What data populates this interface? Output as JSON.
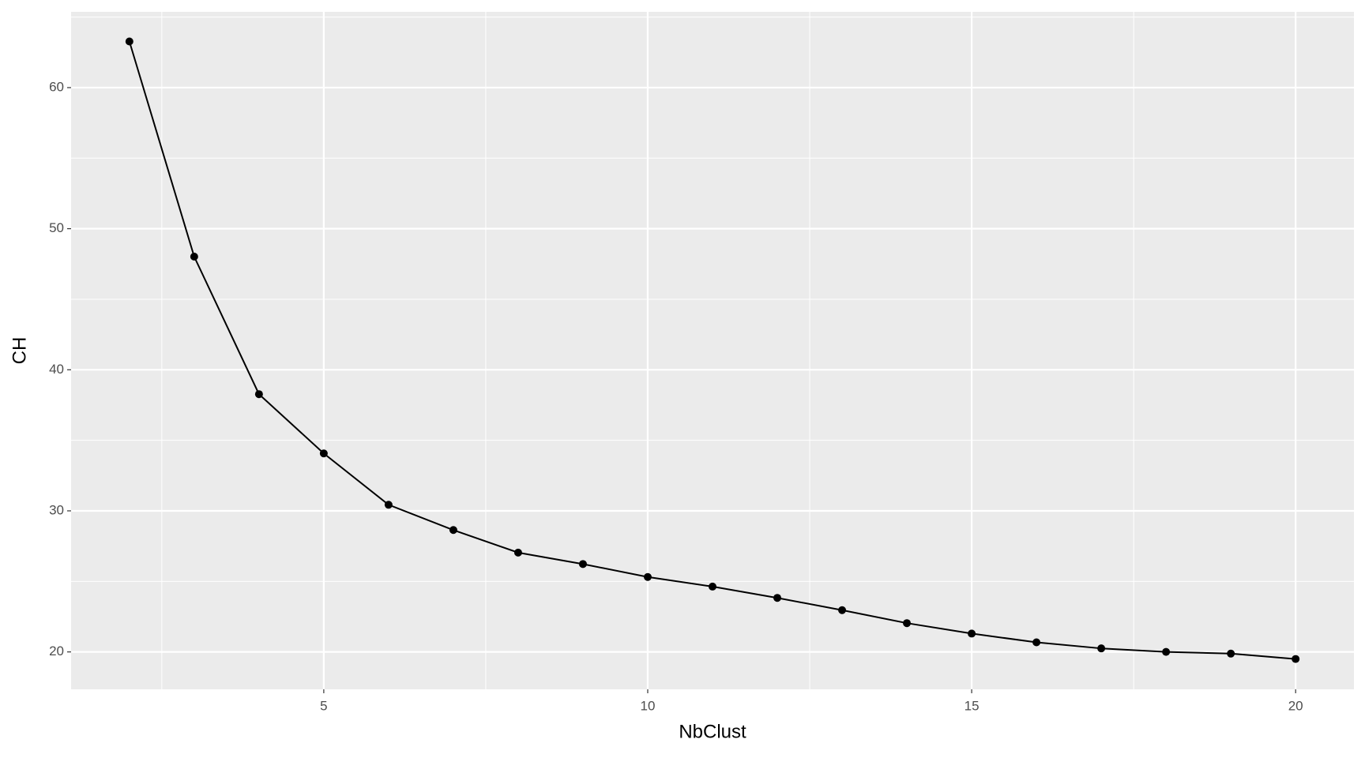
{
  "chart_data": {
    "type": "line",
    "x_label": "NbClust",
    "y_label": "CH",
    "x": [
      2,
      3,
      4,
      5,
      6,
      7,
      8,
      9,
      10,
      11,
      12,
      13,
      14,
      15,
      16,
      17,
      18,
      19,
      20
    ],
    "series": [
      {
        "color": "#000000",
        "values": [
          63.27,
          48.02,
          38.27,
          34.07,
          30.43,
          28.64,
          27.04,
          26.23,
          25.31,
          24.63,
          23.83,
          22.96,
          22.04,
          21.3,
          20.68,
          20.25,
          20.0,
          19.88,
          19.5
        ]
      }
    ],
    "xlim": [
      1.1,
      20.9
    ],
    "ylim": [
      17.35,
      65.37
    ],
    "xticks": [
      5,
      10,
      15,
      20
    ],
    "yticks": [
      20,
      30,
      40,
      50,
      60
    ],
    "x_minor_breaks": [
      2.5,
      7.5,
      12.5,
      17.5
    ],
    "y_minor_breaks": [
      25,
      35,
      45,
      55,
      65
    ],
    "grid": true,
    "panel_color": "#ebebeb",
    "grid_color": "#ffffff"
  }
}
